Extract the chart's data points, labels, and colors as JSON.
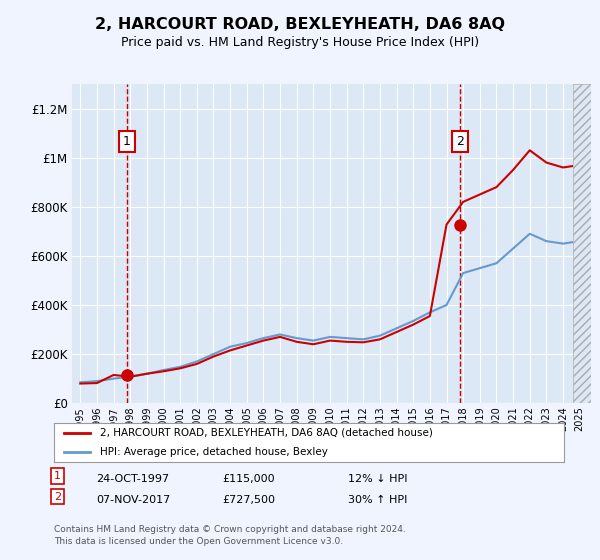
{
  "title": "2, HARCOURT ROAD, BEXLEYHEATH, DA6 8AQ",
  "subtitle": "Price paid vs. HM Land Registry's House Price Index (HPI)",
  "background_color": "#f0f4ff",
  "plot_background": "#dce8f5",
  "grid_color": "#ffffff",
  "red_line_color": "#cc0000",
  "blue_line_color": "#6699cc",
  "annotation_box_color": "#cc0000",
  "legend_label_red": "2, HARCOURT ROAD, BEXLEYHEATH, DA6 8AQ (detached house)",
  "legend_label_blue": "HPI: Average price, detached house, Bexley",
  "sale1_date": "24-OCT-1997",
  "sale1_price": 115000,
  "sale1_label": "12% ↓ HPI",
  "sale2_date": "07-NOV-2017",
  "sale2_price": 727500,
  "sale2_label": "30% ↑ HPI",
  "footer": "Contains HM Land Registry data © Crown copyright and database right 2024.\nThis data is licensed under the Open Government Licence v3.0.",
  "ylim": [
    0,
    1300000
  ],
  "yticks": [
    0,
    200000,
    400000,
    600000,
    800000,
    1000000,
    1200000
  ],
  "ytick_labels": [
    "£0",
    "£200K",
    "£400K",
    "£600K",
    "£800K",
    "£1M",
    "£1.2M"
  ],
  "hpi_years": [
    1995,
    1996,
    1997,
    1998,
    1999,
    2000,
    2001,
    2002,
    2003,
    2004,
    2005,
    2006,
    2007,
    2008,
    2009,
    2010,
    2011,
    2012,
    2013,
    2014,
    2015,
    2016,
    2017,
    2018,
    2019,
    2020,
    2021,
    2022,
    2023,
    2024,
    2025
  ],
  "hpi_values": [
    85000,
    90000,
    100000,
    108000,
    120000,
    135000,
    148000,
    170000,
    200000,
    230000,
    245000,
    265000,
    280000,
    265000,
    255000,
    270000,
    265000,
    260000,
    275000,
    305000,
    335000,
    370000,
    400000,
    530000,
    550000,
    570000,
    630000,
    690000,
    660000,
    650000,
    660000
  ],
  "red_years": [
    1995,
    1996,
    1997,
    1998,
    1999,
    2000,
    2001,
    2002,
    2003,
    2004,
    2005,
    2006,
    2007,
    2008,
    2009,
    2010,
    2011,
    2012,
    2013,
    2014,
    2015,
    2016,
    2017,
    2018,
    2019,
    2020,
    2021,
    2022,
    2023,
    2024,
    2025
  ],
  "red_values": [
    80000,
    82000,
    115000,
    108000,
    120000,
    130000,
    142000,
    160000,
    190000,
    215000,
    235000,
    255000,
    270000,
    250000,
    240000,
    255000,
    250000,
    248000,
    260000,
    290000,
    320000,
    355000,
    727500,
    820000,
    850000,
    880000,
    950000,
    1030000,
    980000,
    960000,
    970000
  ],
  "sale1_x": 1997.8,
  "sale2_x": 2017.8,
  "xmin": 1994.5,
  "xmax": 2025.5
}
